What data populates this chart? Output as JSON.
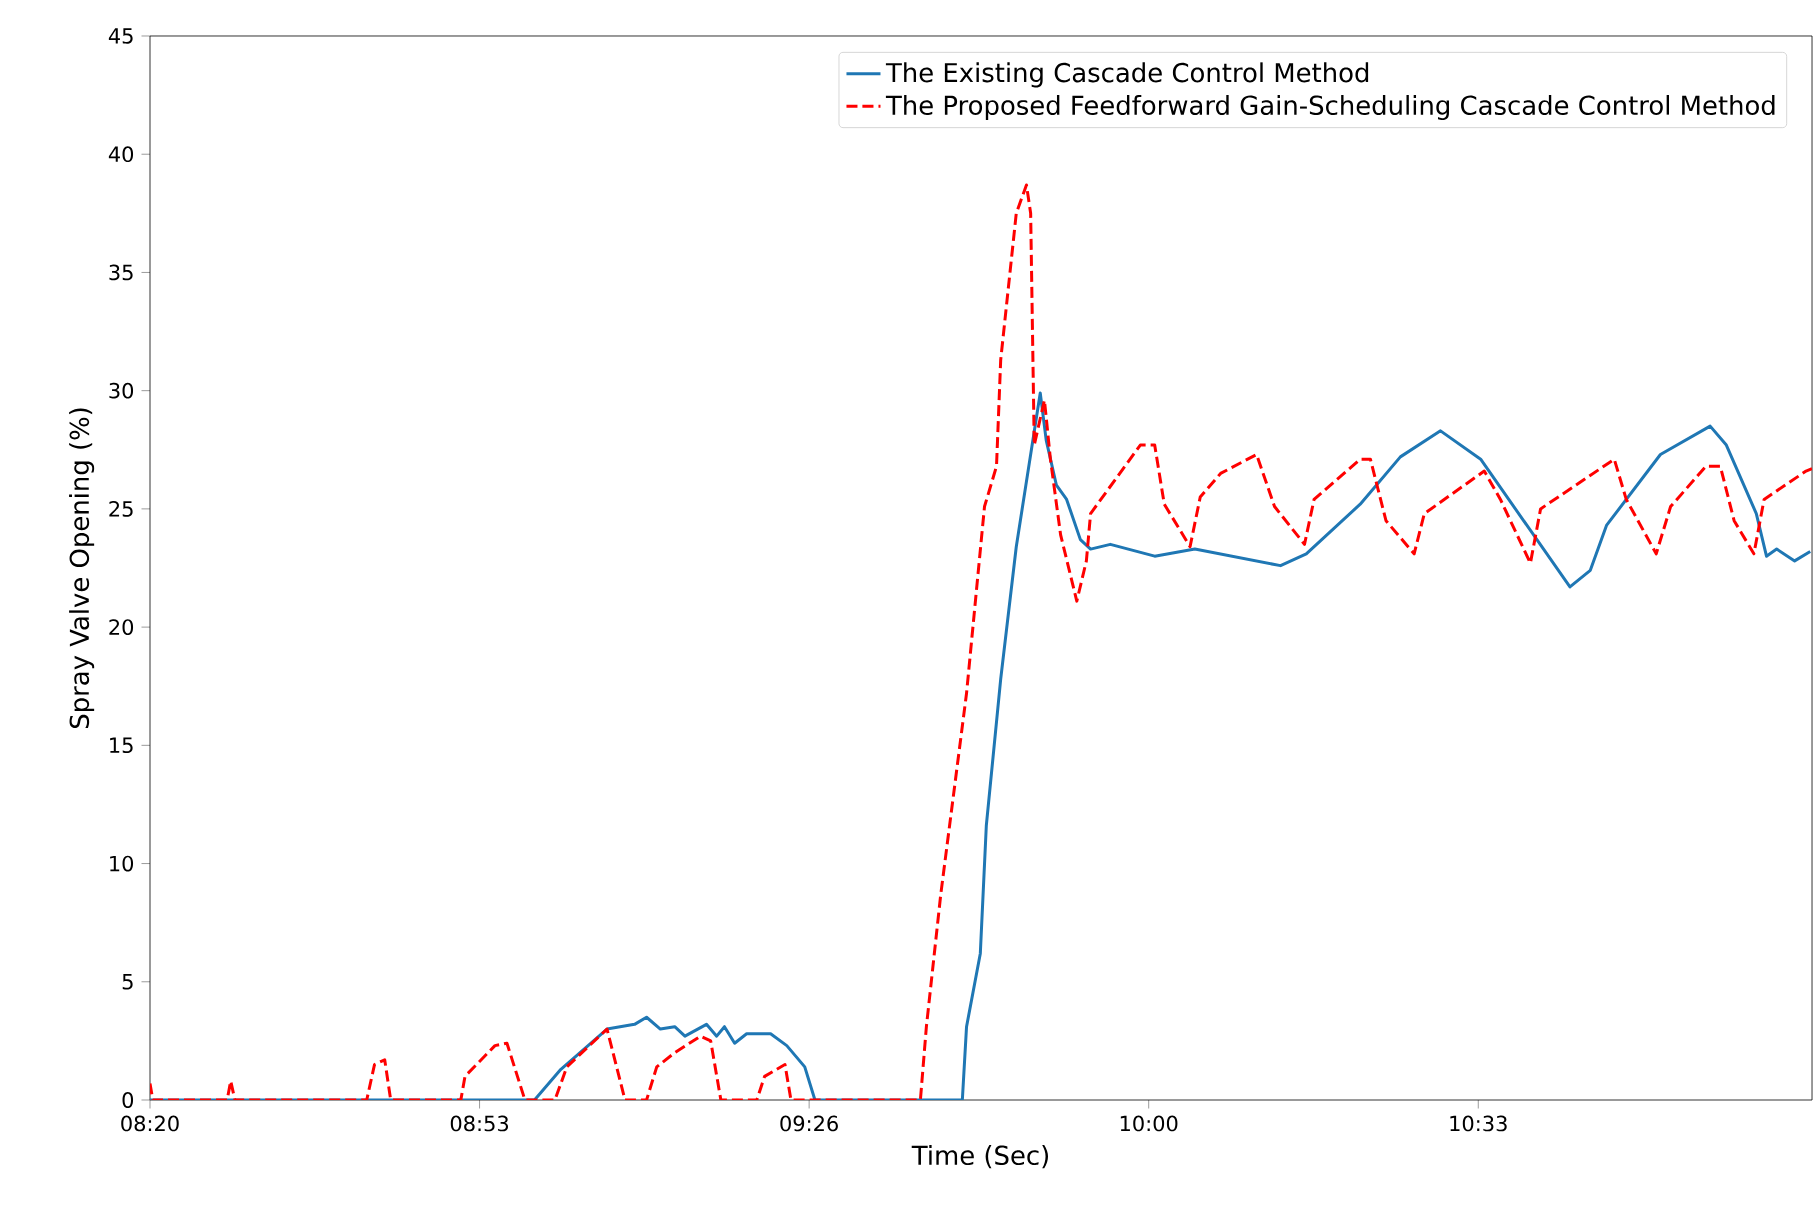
{
  "chart_data": {
    "type": "line",
    "xlabel": "Time (Sec)",
    "ylabel": "Spray Valve Opening (%)",
    "xlim": [
      8.3333,
      11.107
    ],
    "ylim": [
      0,
      45
    ],
    "xticks": [
      {
        "value": 8.3333,
        "label": "08:20"
      },
      {
        "value": 8.8833,
        "label": "08:53"
      },
      {
        "value": 9.4333,
        "label": "09:26"
      },
      {
        "value": 10.0,
        "label": "10:00"
      },
      {
        "value": 10.55,
        "label": "10:33"
      }
    ],
    "yticks": [
      0,
      5,
      10,
      15,
      20,
      25,
      30,
      35,
      40,
      45
    ],
    "legend": "top right",
    "series": [
      {
        "name": "The Existing Cascade Control Method",
        "color": "#1f77b4",
        "line_style": "solid",
        "x": [
          8.3333,
          8.969,
          8.975,
          9.019,
          9.096,
          9.142,
          9.162,
          9.185,
          9.209,
          9.226,
          9.262,
          9.279,
          9.292,
          9.309,
          9.329,
          9.369,
          9.396,
          9.426,
          9.443,
          9.689,
          9.696,
          9.719,
          9.729,
          9.753,
          9.779,
          9.819,
          9.829,
          9.846,
          9.863,
          9.886,
          9.903,
          9.936,
          10.01,
          10.077,
          10.22,
          10.263,
          10.353,
          10.42,
          10.487,
          10.554,
          10.703,
          10.737,
          10.764,
          10.854,
          10.937,
          10.964,
          11.014,
          11.031,
          11.048,
          11.078,
          11.104
        ],
        "values": [
          0,
          0,
          0,
          1.3,
          3.0,
          3.2,
          3.5,
          3.0,
          3.1,
          2.7,
          3.2,
          2.7,
          3.1,
          2.4,
          2.8,
          2.8,
          2.3,
          1.4,
          0,
          0,
          3.1,
          6.2,
          11.6,
          17.8,
          23.4,
          29.9,
          27.9,
          26.0,
          25.4,
          23.7,
          23.3,
          23.5,
          23.0,
          23.3,
          22.6,
          23.1,
          25.2,
          27.2,
          28.3,
          27.1,
          21.7,
          22.4,
          24.3,
          27.3,
          28.5,
          27.7,
          24.8,
          23.0,
          23.3,
          22.8,
          23.2
        ]
      },
      {
        "name": "The Proposed Feedforward Gain-Scheduling Cascade Control Method",
        "color": "#ff0000",
        "line_style": "dashed",
        "x": [
          8.3333,
          8.338,
          8.462,
          8.468,
          8.475,
          8.695,
          8.708,
          8.725,
          8.735,
          8.852,
          8.859,
          8.909,
          8.929,
          8.959,
          9.009,
          9.029,
          9.096,
          9.126,
          9.162,
          9.179,
          9.209,
          9.252,
          9.269,
          9.286,
          9.346,
          9.359,
          9.393,
          9.403,
          9.619,
          9.629,
          9.653,
          9.696,
          9.726,
          9.746,
          9.753,
          9.779,
          9.796,
          9.803,
          9.809,
          9.826,
          9.836,
          9.853,
          9.88,
          9.896,
          9.903,
          9.986,
          10.01,
          10.026,
          10.069,
          10.086,
          10.12,
          10.18,
          10.21,
          10.26,
          10.276,
          10.353,
          10.37,
          10.396,
          10.443,
          10.46,
          10.56,
          10.587,
          10.637,
          10.654,
          10.777,
          10.797,
          10.847,
          10.871,
          10.93,
          10.954,
          10.977,
          11.01,
          11.027,
          11.097,
          11.107
        ],
        "values": [
          0.7,
          0,
          0,
          0.8,
          0,
          0,
          1.5,
          1.7,
          0,
          0,
          1.0,
          2.3,
          2.4,
          0,
          0,
          1.4,
          3.0,
          0,
          0,
          1.4,
          2.0,
          2.7,
          2.5,
          0,
          0,
          1.0,
          1.5,
          0,
          0,
          3.1,
          8.7,
          17.2,
          25.1,
          26.8,
          31.3,
          37.5,
          38.7,
          37.5,
          27.7,
          29.6,
          27.1,
          23.9,
          21.1,
          22.8,
          24.8,
          27.7,
          27.7,
          25.2,
          23.4,
          25.5,
          26.5,
          27.3,
          25.1,
          23.5,
          25.4,
          27.1,
          27.1,
          24.5,
          23.1,
          24.8,
          26.6,
          25.4,
          22.7,
          25.0,
          27.1,
          25.4,
          23.1,
          25.1,
          26.8,
          26.8,
          24.5,
          23.1,
          25.4,
          26.6,
          26.7
        ]
      }
    ]
  }
}
